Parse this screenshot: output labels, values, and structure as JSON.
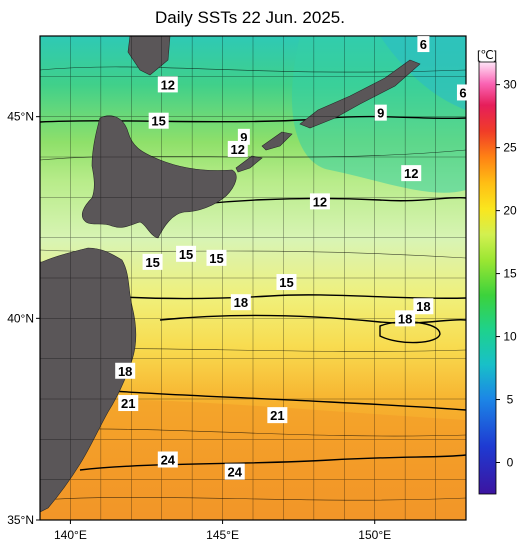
{
  "title": "Daily SSTs 22 Jun. 2025.",
  "map": {
    "lat_ticks": [
      {
        "value": 45,
        "label": "45°N"
      },
      {
        "value": 40,
        "label": "40°N"
      },
      {
        "value": 35,
        "label": "35°N"
      }
    ],
    "lon_ticks": [
      {
        "value": 140,
        "label": "140°E"
      },
      {
        "value": 145,
        "label": "145°E"
      },
      {
        "value": 150,
        "label": "150°E"
      }
    ],
    "lat_range": [
      35,
      47
    ],
    "lon_range": [
      139,
      153
    ],
    "isotherm_labels": [
      {
        "text": "6",
        "lon": 151.6,
        "lat": 46.8
      },
      {
        "text": "6",
        "lon": 152.9,
        "lat": 45.6
      },
      {
        "text": "9",
        "lon": 150.2,
        "lat": 45.1
      },
      {
        "text": "9",
        "lon": 145.7,
        "lat": 44.5
      },
      {
        "text": "12",
        "lon": 143.2,
        "lat": 45.8
      },
      {
        "text": "12",
        "lon": 145.5,
        "lat": 44.2
      },
      {
        "text": "12",
        "lon": 151.2,
        "lat": 43.6
      },
      {
        "text": "12",
        "lon": 148.2,
        "lat": 42.9
      },
      {
        "text": "15",
        "lon": 142.9,
        "lat": 44.9
      },
      {
        "text": "15",
        "lon": 142.7,
        "lat": 41.4
      },
      {
        "text": "15",
        "lon": 143.8,
        "lat": 41.6
      },
      {
        "text": "15",
        "lon": 144.8,
        "lat": 41.5
      },
      {
        "text": "15",
        "lon": 147.1,
        "lat": 40.9
      },
      {
        "text": "18",
        "lon": 145.6,
        "lat": 40.4
      },
      {
        "text": "18",
        "lon": 151.6,
        "lat": 40.3
      },
      {
        "text": "18",
        "lon": 151.0,
        "lat": 40.0
      },
      {
        "text": "18",
        "lon": 141.8,
        "lat": 38.7
      },
      {
        "text": "21",
        "lon": 141.9,
        "lat": 37.9
      },
      {
        "text": "21",
        "lon": 146.8,
        "lat": 37.6
      },
      {
        "text": "24",
        "lon": 143.2,
        "lat": 36.5
      },
      {
        "text": "24",
        "lon": 145.4,
        "lat": 36.2
      }
    ]
  },
  "colorbar": {
    "unit": "[℃]",
    "ticks": [
      "0",
      "5",
      "10",
      "15",
      "20",
      "25",
      "30"
    ],
    "colors": [
      "#3c14a0",
      "#1e3ad2",
      "#1c86e6",
      "#18c0c8",
      "#1ed28c",
      "#3cd23c",
      "#9ae632",
      "#d2f050",
      "#fae61e",
      "#ffbe14",
      "#ff8214",
      "#f03c28",
      "#e61e5a",
      "#fa64b4",
      "#ffb4e6",
      "#ffe6f8"
    ]
  },
  "colors": {
    "land": "#5a5658",
    "bg": "#ffffff"
  }
}
